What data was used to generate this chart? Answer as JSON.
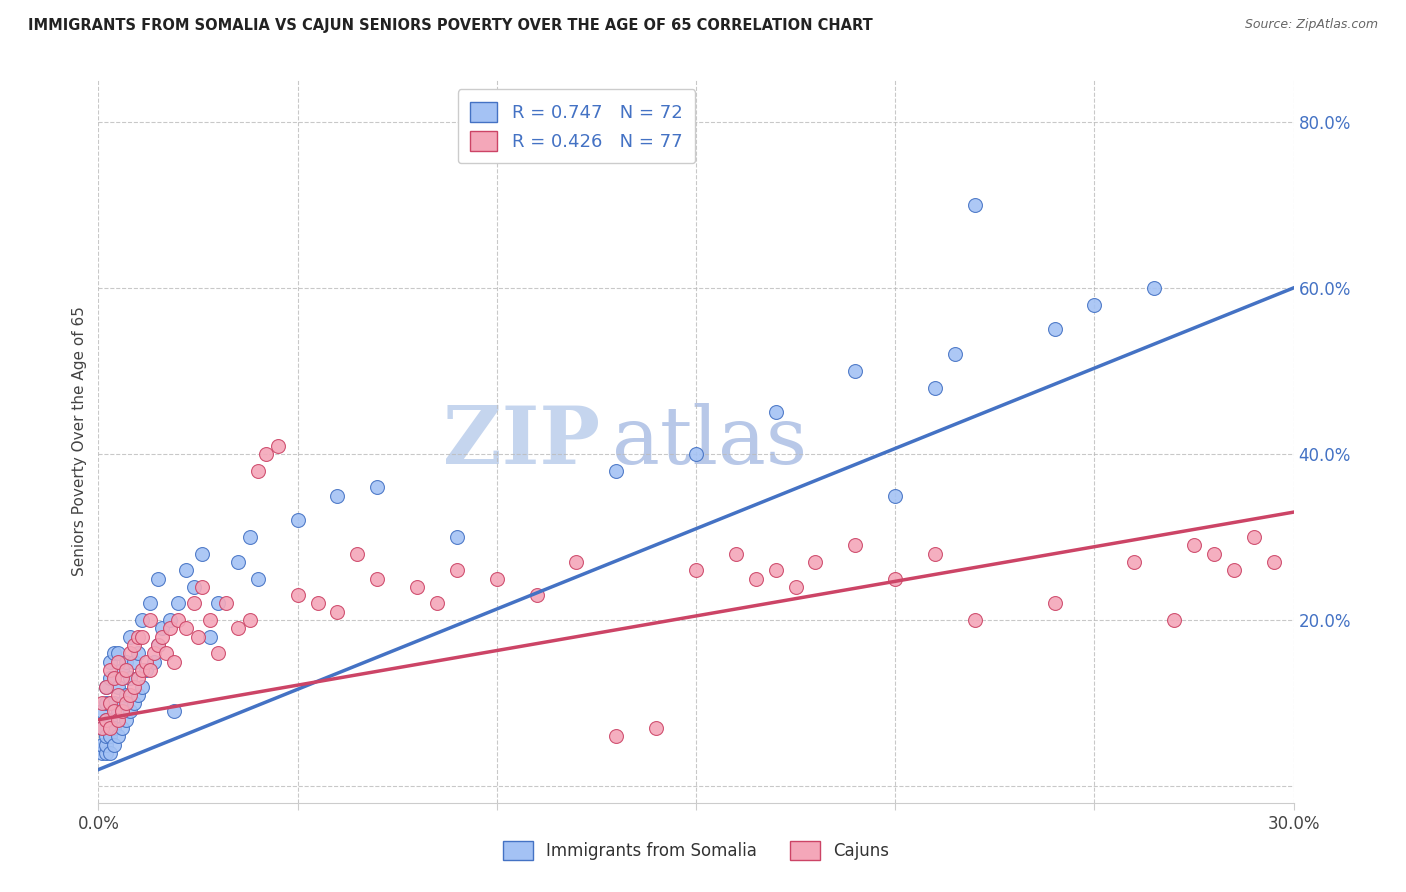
{
  "title": "IMMIGRANTS FROM SOMALIA VS CAJUN SENIORS POVERTY OVER THE AGE OF 65 CORRELATION CHART",
  "source": "Source: ZipAtlas.com",
  "ylabel": "Seniors Poverty Over the Age of 65",
  "xlim": [
    0.0,
    0.3
  ],
  "ylim": [
    -0.02,
    0.85
  ],
  "xticks": [
    0.0,
    0.05,
    0.1,
    0.15,
    0.2,
    0.25,
    0.3
  ],
  "xticklabels": [
    "0.0%",
    "",
    "",
    "",
    "",
    "",
    "30.0%"
  ],
  "yticks": [
    0.0,
    0.2,
    0.4,
    0.6,
    0.8
  ],
  "yticklabels": [
    "",
    "20.0%",
    "40.0%",
    "60.0%",
    "80.0%"
  ],
  "legend_label1": "Immigrants from Somalia",
  "legend_label2": "Cajuns",
  "R1": 0.747,
  "N1": 72,
  "R2": 0.426,
  "N2": 77,
  "color1": "#a4c2f4",
  "color2": "#f4a7b9",
  "line_color1": "#4472c4",
  "line_color2": "#cc4466",
  "watermark_zip": "ZIP",
  "watermark_atlas": "atlas",
  "watermark_color_zip": "#c5d5ee",
  "watermark_color_atlas": "#b8c8e8",
  "background_color": "#ffffff",
  "trendline1_x0": 0.0,
  "trendline1_y0": 0.02,
  "trendline1_x1": 0.3,
  "trendline1_y1": 0.6,
  "trendline2_x0": 0.0,
  "trendline2_y0": 0.08,
  "trendline2_x1": 0.3,
  "trendline2_y1": 0.33,
  "scatter1_x": [
    0.001,
    0.001,
    0.001,
    0.001,
    0.002,
    0.002,
    0.002,
    0.002,
    0.002,
    0.002,
    0.003,
    0.003,
    0.003,
    0.003,
    0.003,
    0.003,
    0.004,
    0.004,
    0.004,
    0.004,
    0.004,
    0.005,
    0.005,
    0.005,
    0.005,
    0.006,
    0.006,
    0.006,
    0.007,
    0.007,
    0.007,
    0.008,
    0.008,
    0.008,
    0.009,
    0.009,
    0.01,
    0.01,
    0.011,
    0.011,
    0.012,
    0.013,
    0.014,
    0.015,
    0.015,
    0.016,
    0.018,
    0.019,
    0.02,
    0.022,
    0.024,
    0.026,
    0.028,
    0.03,
    0.035,
    0.038,
    0.04,
    0.05,
    0.06,
    0.07,
    0.09,
    0.13,
    0.15,
    0.17,
    0.19,
    0.2,
    0.21,
    0.215,
    0.22,
    0.24,
    0.25,
    0.265
  ],
  "scatter1_y": [
    0.04,
    0.05,
    0.07,
    0.09,
    0.04,
    0.05,
    0.06,
    0.08,
    0.1,
    0.12,
    0.04,
    0.06,
    0.08,
    0.1,
    0.13,
    0.15,
    0.05,
    0.07,
    0.1,
    0.13,
    0.16,
    0.06,
    0.09,
    0.12,
    0.16,
    0.07,
    0.1,
    0.14,
    0.08,
    0.11,
    0.15,
    0.09,
    0.13,
    0.18,
    0.1,
    0.15,
    0.11,
    0.16,
    0.12,
    0.2,
    0.14,
    0.22,
    0.15,
    0.17,
    0.25,
    0.19,
    0.2,
    0.09,
    0.22,
    0.26,
    0.24,
    0.28,
    0.18,
    0.22,
    0.27,
    0.3,
    0.25,
    0.32,
    0.35,
    0.36,
    0.3,
    0.38,
    0.4,
    0.45,
    0.5,
    0.35,
    0.48,
    0.52,
    0.7,
    0.55,
    0.58,
    0.6
  ],
  "scatter2_x": [
    0.001,
    0.001,
    0.002,
    0.002,
    0.003,
    0.003,
    0.003,
    0.004,
    0.004,
    0.005,
    0.005,
    0.005,
    0.006,
    0.006,
    0.007,
    0.007,
    0.008,
    0.008,
    0.009,
    0.009,
    0.01,
    0.01,
    0.011,
    0.011,
    0.012,
    0.013,
    0.013,
    0.014,
    0.015,
    0.016,
    0.017,
    0.018,
    0.019,
    0.02,
    0.022,
    0.024,
    0.025,
    0.026,
    0.028,
    0.03,
    0.032,
    0.035,
    0.038,
    0.04,
    0.042,
    0.045,
    0.05,
    0.055,
    0.06,
    0.065,
    0.07,
    0.08,
    0.085,
    0.09,
    0.1,
    0.11,
    0.12,
    0.13,
    0.14,
    0.15,
    0.16,
    0.165,
    0.17,
    0.175,
    0.18,
    0.19,
    0.2,
    0.21,
    0.22,
    0.24,
    0.26,
    0.27,
    0.275,
    0.28,
    0.285,
    0.29,
    0.295
  ],
  "scatter2_y": [
    0.07,
    0.1,
    0.08,
    0.12,
    0.07,
    0.1,
    0.14,
    0.09,
    0.13,
    0.08,
    0.11,
    0.15,
    0.09,
    0.13,
    0.1,
    0.14,
    0.11,
    0.16,
    0.12,
    0.17,
    0.13,
    0.18,
    0.14,
    0.18,
    0.15,
    0.14,
    0.2,
    0.16,
    0.17,
    0.18,
    0.16,
    0.19,
    0.15,
    0.2,
    0.19,
    0.22,
    0.18,
    0.24,
    0.2,
    0.16,
    0.22,
    0.19,
    0.2,
    0.38,
    0.4,
    0.41,
    0.23,
    0.22,
    0.21,
    0.28,
    0.25,
    0.24,
    0.22,
    0.26,
    0.25,
    0.23,
    0.27,
    0.06,
    0.07,
    0.26,
    0.28,
    0.25,
    0.26,
    0.24,
    0.27,
    0.29,
    0.25,
    0.28,
    0.2,
    0.22,
    0.27,
    0.2,
    0.29,
    0.28,
    0.26,
    0.3,
    0.27
  ]
}
